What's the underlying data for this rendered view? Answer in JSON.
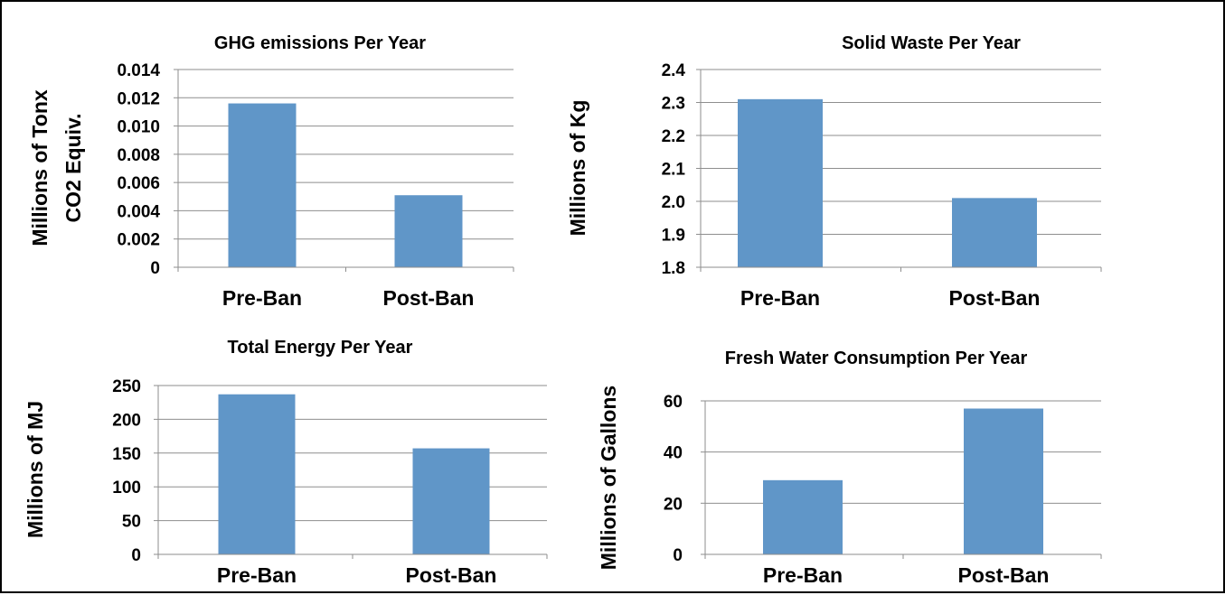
{
  "colors": {
    "bar": "#6096c8",
    "grid": "#8e8e8e",
    "axis": "#8e8e8e",
    "text": "#000000",
    "border": "#000000"
  },
  "chart_data": [
    {
      "type": "bar",
      "title": "GHG emissions Per Year",
      "ylabel_lines": [
        "Millions of Tonx",
        "CO2 Equiv."
      ],
      "categories": [
        "Pre-Ban",
        "Post-Ban"
      ],
      "values": [
        0.0116,
        0.0051
      ],
      "ylim": [
        0,
        0.014
      ],
      "yticks": [
        0,
        0.002,
        0.004,
        0.006,
        0.008,
        0.01,
        0.012,
        0.014
      ],
      "ytick_labels": [
        "0",
        "0.002",
        "0.004",
        "0.006",
        "0.008",
        "0.010",
        "0.012",
        "0.014"
      ],
      "grid": true
    },
    {
      "type": "bar",
      "title": "Solid Waste Per Year",
      "ylabel_lines": [
        "Millions of Kg"
      ],
      "categories": [
        "Pre-Ban",
        "Post-Ban"
      ],
      "values": [
        2.31,
        2.01
      ],
      "ylim": [
        1.8,
        2.4
      ],
      "yticks": [
        1.8,
        1.9,
        2.0,
        2.1,
        2.2,
        2.3,
        2.4
      ],
      "ytick_labels": [
        "1.8",
        "1.9",
        "2.0",
        "2.1",
        "2.2",
        "2.3",
        "2.4"
      ],
      "grid": true
    },
    {
      "type": "bar",
      "title": "Total Energy Per Year",
      "ylabel_lines": [
        "Millions of MJ"
      ],
      "categories": [
        "Pre-Ban",
        "Post-Ban"
      ],
      "values": [
        237,
        157
      ],
      "ylim": [
        0,
        250
      ],
      "yticks": [
        0,
        50,
        100,
        150,
        200,
        250
      ],
      "ytick_labels": [
        "0",
        "50",
        "100",
        "150",
        "200",
        "250"
      ],
      "grid": true
    },
    {
      "type": "bar",
      "title": "Fresh Water Consumption Per Year",
      "ylabel_lines": [
        "Millions of Gallons"
      ],
      "categories": [
        "Pre-Ban",
        "Post-Ban"
      ],
      "values": [
        29,
        57
      ],
      "ylim": [
        0,
        60
      ],
      "yticks": [
        0,
        20,
        40,
        60
      ],
      "ytick_labels": [
        "0",
        "20",
        "40",
        "60"
      ],
      "grid": true
    }
  ]
}
